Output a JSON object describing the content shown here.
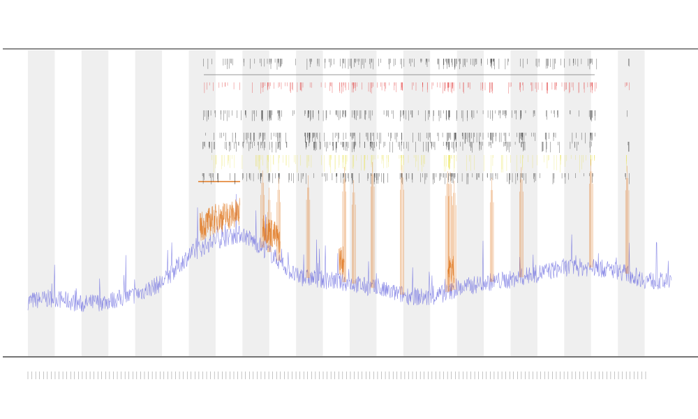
{
  "chart_data": {
    "type": "line",
    "title": "",
    "subtitle_lines": [
      "",
      ""
    ],
    "xlabel": "",
    "ylabel": "",
    "x_range": [
      0,
      480
    ],
    "ylim": [
      0,
      100
    ],
    "band_count": 24,
    "colors": {
      "band": "#efefef",
      "signal": "#6b6be0",
      "highlight": "#e07820",
      "marker_black": "#222222",
      "marker_red": "#e03030",
      "marker_yellow": "#e8e040",
      "axis": "#333333"
    },
    "series": [
      {
        "color": "#6b6be0",
        "baseline": [
          {
            "x": 0,
            "y": 18
          },
          {
            "x": 20,
            "y": 19
          },
          {
            "x": 40,
            "y": 17
          },
          {
            "x": 60,
            "y": 18
          },
          {
            "x": 80,
            "y": 20
          },
          {
            "x": 100,
            "y": 24
          },
          {
            "x": 120,
            "y": 33
          },
          {
            "x": 140,
            "y": 38
          },
          {
            "x": 160,
            "y": 40
          },
          {
            "x": 180,
            "y": 34
          },
          {
            "x": 200,
            "y": 26
          },
          {
            "x": 220,
            "y": 25
          },
          {
            "x": 240,
            "y": 24
          },
          {
            "x": 260,
            "y": 22
          },
          {
            "x": 280,
            "y": 20
          },
          {
            "x": 300,
            "y": 19
          },
          {
            "x": 320,
            "y": 22
          },
          {
            "x": 340,
            "y": 24
          },
          {
            "x": 360,
            "y": 25
          },
          {
            "x": 380,
            "y": 27
          },
          {
            "x": 400,
            "y": 29
          },
          {
            "x": 420,
            "y": 29
          },
          {
            "x": 440,
            "y": 28
          },
          {
            "x": 460,
            "y": 25
          },
          {
            "x": 480,
            "y": 24
          }
        ]
      }
    ],
    "highlight_regions": [
      [
        128,
        158
      ],
      [
        175,
        188
      ],
      [
        232,
        236
      ],
      [
        313,
        318
      ]
    ],
    "spike_x": [
      175,
      180,
      187,
      209,
      236,
      243,
      257,
      279,
      313,
      315,
      318,
      346,
      368,
      420,
      447
    ],
    "marker_rows": [
      "black",
      "red",
      "black",
      "black",
      "black",
      "yellow",
      "black"
    ]
  }
}
